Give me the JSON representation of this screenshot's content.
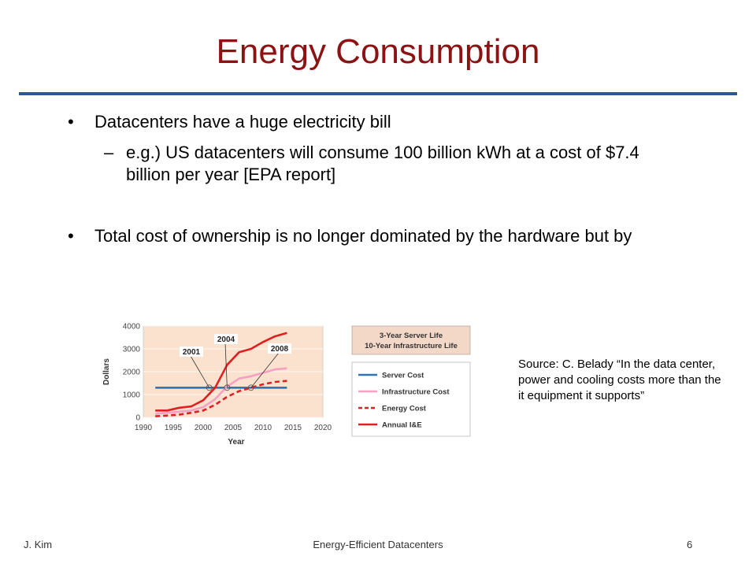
{
  "slide": {
    "title": "Energy Consumption",
    "bullets": [
      {
        "text": "Datacenters have a huge electricity bill"
      },
      {
        "text": "Total cost of ownership is no longer dominated by the hardware but by"
      }
    ],
    "sub_bullet": {
      "text": "e.g.) US datacenters will consume 100 billion kWh at a cost of $7.4 billion per year  [EPA report]"
    },
    "bullet_glyph": "•",
    "dash_glyph": "–"
  },
  "source_note": "Source: C. Belady “In the data center, power and cooling costs more than the it equipment it supports”",
  "footer": {
    "left": "J. Kim",
    "center": "Energy-Efficient Datacenters",
    "right": "6"
  },
  "colors": {
    "title": "#8b1313",
    "rule": "#2f5597",
    "server_cost": "#2e75b6",
    "infrastructure_cost": "#f4a1c4",
    "energy_cost": "#e02020",
    "annual_ie": "#e02020",
    "plot_bg": "#fbe2cf"
  },
  "chart_data": {
    "type": "line",
    "xlabel": "Year",
    "ylabel": "Dollars",
    "xlim": [
      1990,
      2020
    ],
    "ylim": [
      0,
      4000
    ],
    "x_ticks": [
      "1990",
      "1995",
      "2000",
      "2005",
      "2010",
      "2015",
      "2020"
    ],
    "y_ticks": [
      "0",
      "1000",
      "2000",
      "3000",
      "4000"
    ],
    "info_box": [
      "3-Year Server Life",
      "10-Year Infrastructure Life"
    ],
    "annotations": [
      {
        "label": "2001",
        "x": 2001,
        "y": 1300
      },
      {
        "label": "2004",
        "x": 2004,
        "y": 1300
      },
      {
        "label": "2008",
        "x": 2008,
        "y": 1300
      }
    ],
    "series": [
      {
        "name": "Server Cost",
        "style": "solid",
        "x": [
          1992,
          2014
        ],
        "y": [
          1300,
          1300
        ]
      },
      {
        "name": "Infrastructure Cost",
        "style": "solid",
        "x": [
          1992,
          1994,
          1996,
          1998,
          2000,
          2002,
          2004,
          2006,
          2008,
          2010,
          2012,
          2014
        ],
        "y": [
          150,
          200,
          250,
          300,
          450,
          800,
          1350,
          1700,
          1800,
          1950,
          2100,
          2150
        ]
      },
      {
        "name": "Energy Cost",
        "style": "dashed",
        "x": [
          1992,
          1994,
          1996,
          1998,
          2000,
          2002,
          2004,
          2006,
          2008,
          2010,
          2012,
          2014
        ],
        "y": [
          50,
          80,
          120,
          200,
          300,
          550,
          900,
          1150,
          1300,
          1450,
          1550,
          1600
        ]
      },
      {
        "name": "Annual I&E",
        "style": "solid",
        "x": [
          1992,
          1994,
          1996,
          1998,
          2000,
          2002,
          2004,
          2006,
          2008,
          2010,
          2012,
          2014
        ],
        "y": [
          300,
          300,
          420,
          480,
          750,
          1300,
          2300,
          2850,
          3000,
          3300,
          3550,
          3700
        ]
      }
    ]
  }
}
